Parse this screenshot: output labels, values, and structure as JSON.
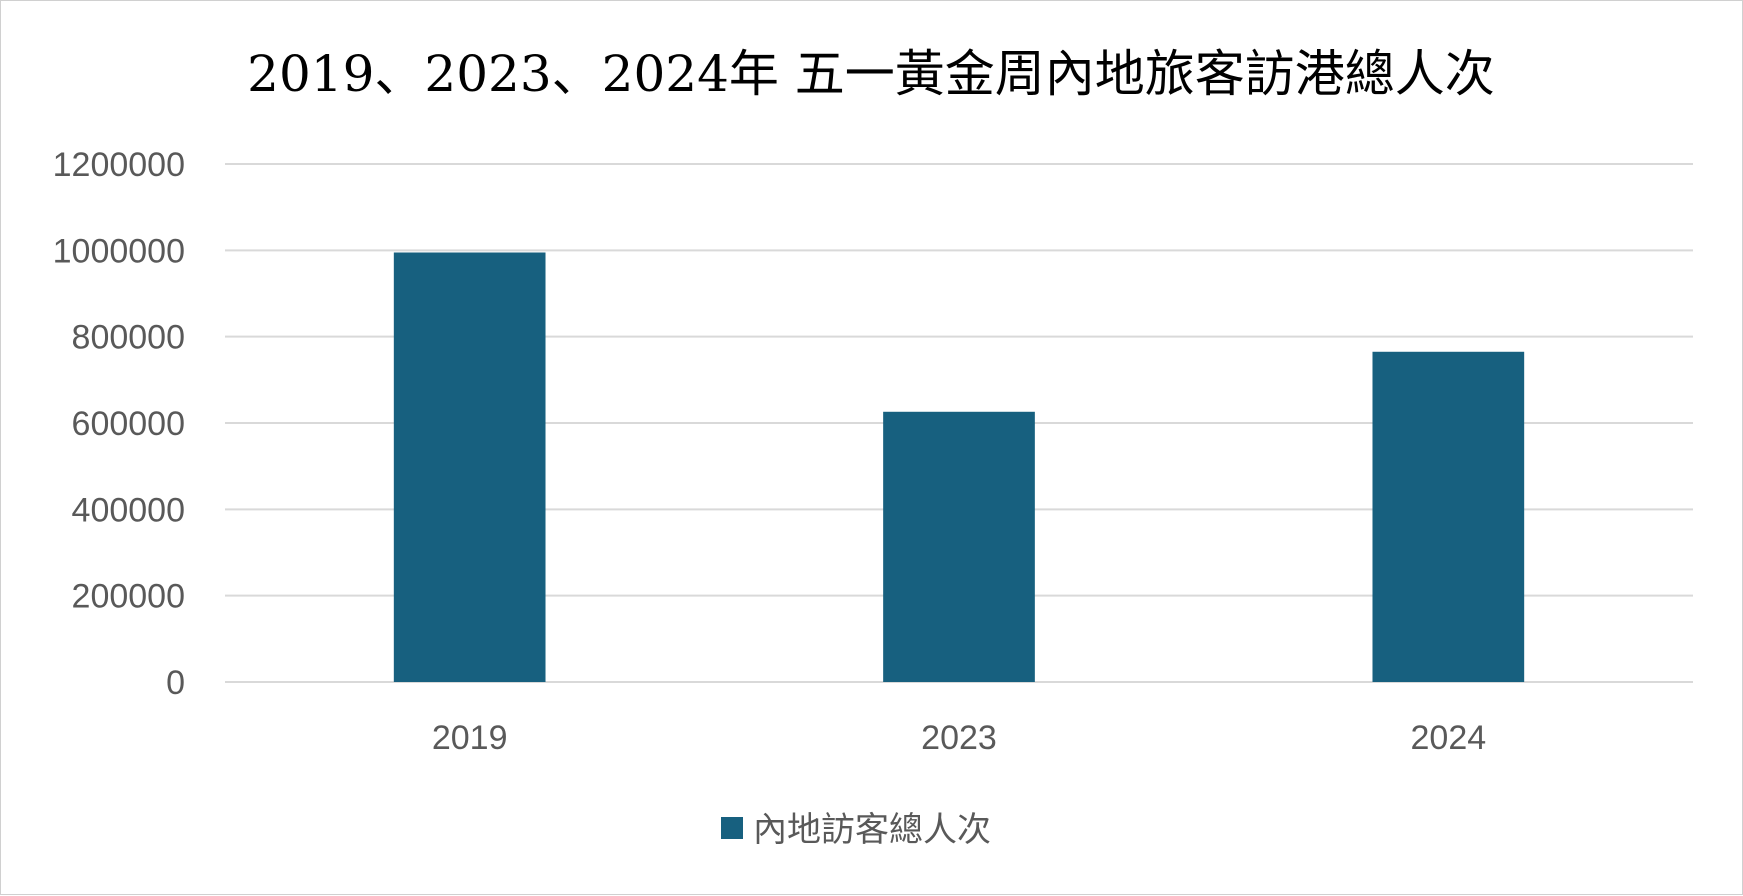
{
  "chart_data": {
    "type": "bar",
    "title": "2019、2023、2024年 五一黃金周內地旅客訪港總人次",
    "categories": [
      "2019",
      "2023",
      "2024"
    ],
    "series": [
      {
        "name": "內地訪客總人次",
        "values": [
          995000,
          626000,
          765000
        ],
        "color": "#17607f"
      }
    ],
    "ylim": [
      0,
      1200000
    ],
    "yticks": [
      0,
      200000,
      400000,
      600000,
      800000,
      1000000,
      1200000
    ],
    "grid": true,
    "legend_position": "bottom"
  }
}
